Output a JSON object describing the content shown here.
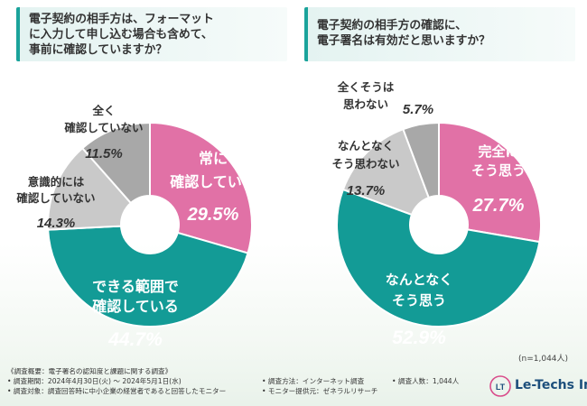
{
  "questions": {
    "left": "電子契約の相手方は、フォーマット\nに入力して申し込む場合も含めて、\n事前に確認していますか？",
    "right": "電子契約の相手方の確認に、\n電子署名は有効だと思いますか？"
  },
  "chart_data": [
    {
      "type": "pie",
      "title": "電子契約の相手方は、フォーマットに入力して申し込む場合も含めて、事前に確認していますか？",
      "donut": true,
      "slices": [
        {
          "label": "常に確認している",
          "value": 29.5,
          "value_text": "29.5%",
          "color": "#e171a6"
        },
        {
          "label": "できる範囲で確認している",
          "value": 44.7,
          "value_text": "44.7%",
          "color": "#139b96"
        },
        {
          "label": "意識的には確認していない",
          "value": 14.3,
          "value_text": "14.3%",
          "color": "#c9c9c9"
        },
        {
          "label": "全く確認していない",
          "value": 11.5,
          "value_text": "11.5%",
          "color": "#a8a8a8"
        }
      ]
    },
    {
      "type": "pie",
      "title": "電子契約の相手方の確認に、電子署名は有効だと思いますか？",
      "donut": true,
      "slices": [
        {
          "label": "完全にそう思う",
          "value": 27.7,
          "value_text": "27.7%",
          "color": "#e171a6"
        },
        {
          "label": "なんとなくそう思う",
          "value": 52.9,
          "value_text": "52.9%",
          "color": "#139b96"
        },
        {
          "label": "なんとなくそう思わない",
          "value": 13.7,
          "value_text": "13.7%",
          "color": "#c9c9c9"
        },
        {
          "label": "全くそうは思わない",
          "value": 5.7,
          "value_text": "5.7%",
          "color": "#a8a8a8"
        }
      ]
    }
  ],
  "sample_size": "(n=1,044人)",
  "footer": {
    "survey_overview": "《調査概要：電子署名の認知度と課題に関する調査》",
    "period": "• 調査期間：2024年4月30日(火) ～ 2024年5月1日(水)",
    "method": "• 調査方法：インターネット調査",
    "respondents": "• 調査人数：1,044人",
    "target": "• 調査対象：調査回答時に中小企業の経営者であると回答したモニター",
    "provider": "• モニター提供元：ゼネラルリサーチ"
  },
  "logo_text": "Le-Techs Inc.",
  "logo_mark": "LT"
}
